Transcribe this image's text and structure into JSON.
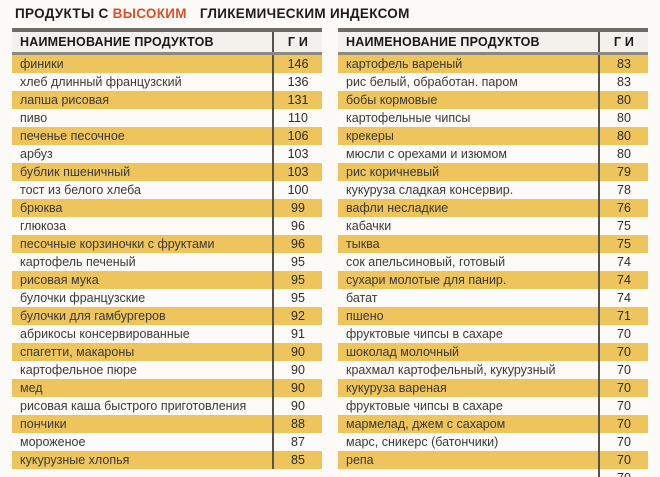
{
  "title": {
    "prefix": "ПРОДУКТЫ С",
    "highlight": "ВЫСОКИМ",
    "suffix": "ГЛИКЕМИЧЕСКИМ ИНДЕКСОМ"
  },
  "colors": {
    "page-bg": "#FBFAF6",
    "row-yellow": "#EEC45C",
    "row-white": "#FCFBF7",
    "header-bg": "#F3F1EB",
    "border-dark": "#6F6C66",
    "border-mid": "#8B8881",
    "divider": "#56534D",
    "highlight": "#D9502B",
    "text": "#3A3A3A"
  },
  "column_headers": {
    "name": "НАИМЕНОВАНИЕ ПРОДУКТОВ",
    "gi": "Г И"
  },
  "tables": [
    {
      "rows": [
        {
          "name": "финики",
          "gi": "146"
        },
        {
          "name": "хлеб длинный французский",
          "gi": "136"
        },
        {
          "name": "лапша рисовая",
          "gi": "131"
        },
        {
          "name": "пиво",
          "gi": "110"
        },
        {
          "name": "печенье песочное",
          "gi": "106"
        },
        {
          "name": "арбуз",
          "gi": "103"
        },
        {
          "name": "бублик пшеничный",
          "gi": "103"
        },
        {
          "name": "тост из белого хлеба",
          "gi": "100"
        },
        {
          "name": "брюква",
          "gi": "99"
        },
        {
          "name": "глюкоза",
          "gi": "96"
        },
        {
          "name": "песочные корзиночки с фруктами",
          "gi": "96"
        },
        {
          "name": "картофель печеный",
          "gi": "95"
        },
        {
          "name": "рисовая мука",
          "gi": "95"
        },
        {
          "name": "булочки французские",
          "gi": "95"
        },
        {
          "name": "булочки для гамбургеров",
          "gi": "92"
        },
        {
          "name": "абрикосы консервированные",
          "gi": "91"
        },
        {
          "name": "спагетти, макароны",
          "gi": "90"
        },
        {
          "name": "картофельное пюре",
          "gi": "90"
        },
        {
          "name": "мед",
          "gi": "90"
        },
        {
          "name": "рисовая каша быстрого приготовления",
          "gi": "90"
        },
        {
          "name": "пончики",
          "gi": "88"
        },
        {
          "name": "мороженое",
          "gi": "87"
        },
        {
          "name": "кукурузные хлопья",
          "gi": "85"
        }
      ]
    },
    {
      "rows": [
        {
          "name": "картофель вареный",
          "gi": "83"
        },
        {
          "name": "рис белый, обработан. паром",
          "gi": "83"
        },
        {
          "name": "бобы кормовые",
          "gi": "80"
        },
        {
          "name": "картофельные чипсы",
          "gi": "80"
        },
        {
          "name": "крекеры",
          "gi": "80"
        },
        {
          "name": "мюсли с орехами и изюмом",
          "gi": "80"
        },
        {
          "name": "рис коричневый",
          "gi": "79"
        },
        {
          "name": "кукуруза сладкая консервир.",
          "gi": "78"
        },
        {
          "name": "вафли несладкие",
          "gi": "76"
        },
        {
          "name": "кабачки",
          "gi": "75"
        },
        {
          "name": "тыква",
          "gi": "75"
        },
        {
          "name": "сок апельсиновый, готовый",
          "gi": "74"
        },
        {
          "name": "сухари молотые для панир.",
          "gi": "74"
        },
        {
          "name": "батат",
          "gi": "74"
        },
        {
          "name": "пшено",
          "gi": "71"
        },
        {
          "name": "фруктовые чипсы в сахаре",
          "gi": "70"
        },
        {
          "name": "шоколад молочный",
          "gi": "70"
        },
        {
          "name": "крахмал картофельный, кукурузный",
          "gi": "70"
        },
        {
          "name": "кукуруза вареная",
          "gi": "70"
        },
        {
          "name": "фруктовые чипсы в сахаре",
          "gi": "70"
        },
        {
          "name": "мармелад, джем с сахаром",
          "gi": "70"
        },
        {
          "name": "марс, сникерс (батончики)",
          "gi": "70"
        },
        {
          "name": "репа",
          "gi": "70"
        },
        {
          "name": "",
          "gi": "70",
          "partial": true
        }
      ]
    }
  ]
}
